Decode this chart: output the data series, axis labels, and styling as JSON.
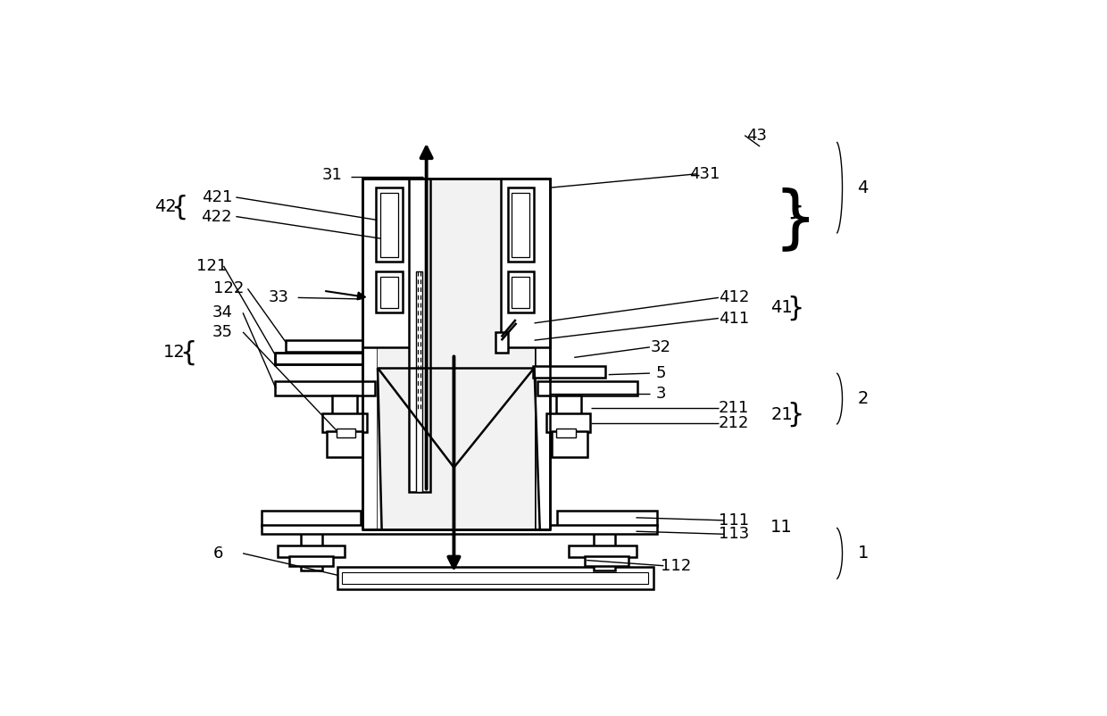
{
  "bg": "#ffffff",
  "lc": "#000000",
  "lw": 1.8,
  "tlw": 1.0,
  "figw": 12.4,
  "figh": 8.02,
  "dpi": 100
}
